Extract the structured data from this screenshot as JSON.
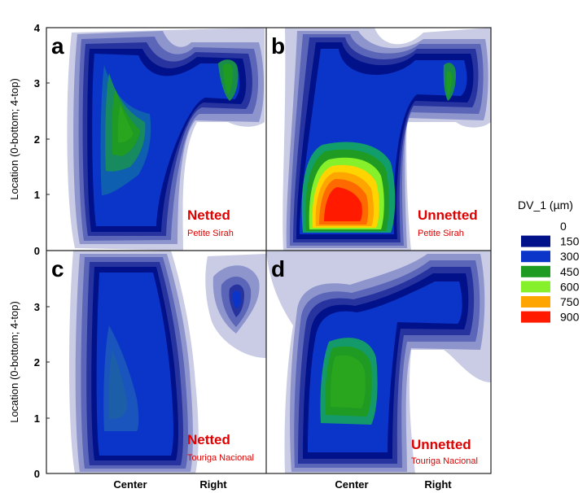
{
  "chart_data": {
    "type": "heatmap",
    "ylabel": "Location (0-bottom; 4-top)",
    "xticks": [
      "Center",
      "Right"
    ],
    "yticks_top": [
      "1",
      "2",
      "3",
      "4"
    ],
    "yticks_bottom": [
      "0",
      "1",
      "2",
      "3"
    ],
    "y_zero_label": "0",
    "ylim": [
      0,
      4
    ],
    "legend": {
      "title": "DV_1 (µm)",
      "levels": [
        {
          "label": "0",
          "color": "#ffffff"
        },
        {
          "label": "150",
          "color": "#00118a"
        },
        {
          "label": "300",
          "color": "#0b35c9"
        },
        {
          "label": "450",
          "color": "#1f9a22"
        },
        {
          "label": "600",
          "color": "#86f02a"
        },
        {
          "label": "750",
          "color": "#ffa500"
        },
        {
          "label": "900",
          "color": "#ff1a00"
        }
      ]
    },
    "panels": [
      {
        "letter": "a",
        "treatment": "Netted",
        "cultivar": "Petite Sirah",
        "peak_location": {
          "column": "Center",
          "y": 2.2
        },
        "peak_value": 450,
        "secondary_peak": {
          "column": "Right",
          "y": 3.2,
          "value": 450
        }
      },
      {
        "letter": "b",
        "treatment": "Unnetted",
        "cultivar": "Petite Sirah",
        "peak_location": {
          "column": "Center",
          "y": 0.8
        },
        "peak_value": 900,
        "secondary_peak": {
          "column": "Right",
          "y": 3.0,
          "value": 450
        }
      },
      {
        "letter": "c",
        "treatment": "Netted",
        "cultivar": "Touriga Nacional",
        "peak_location": {
          "column": "Center",
          "y": 1.5
        },
        "peak_value": 300,
        "secondary_peak": {
          "column": "Right",
          "y": 3.3,
          "value": 150
        }
      },
      {
        "letter": "d",
        "treatment": "Unnetted",
        "cultivar": "Touriga Nacional",
        "peak_location": {
          "column": "Center",
          "y": 1.5
        },
        "peak_value": 450,
        "secondary_peak": {
          "column": "Right",
          "y": 3.0,
          "value": 300
        }
      }
    ]
  }
}
